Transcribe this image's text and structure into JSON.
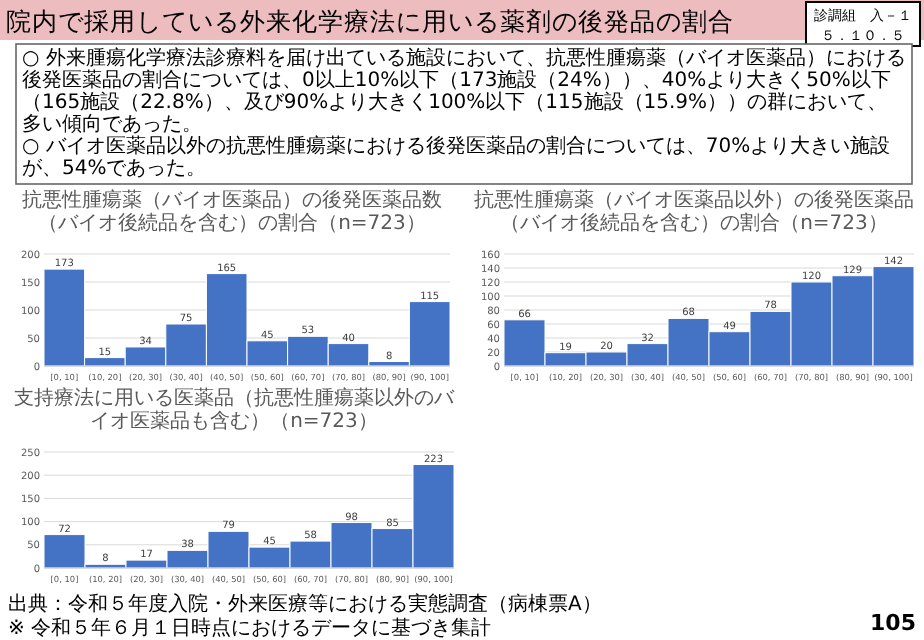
{
  "chart_data": [
    {
      "type": "other",
      "title": "院内で採用している外来化学療法に用いる薬剤の後発品の割合",
      "annotations": [
        "診調組　入－１",
        "５．１０．５",
        "○ 外来腫瘍化学療法診療料を届け出ている施設において、抗悪性腫瘍薬（バイオ医薬品）における後発医薬品の割合については、0以上10%以下（173施設（24%））、40%より大きく50%以下（165施設（22.8%）、及び90%より大きく100%以下（115施設（15.9%））の群において、多い傾向であった。",
        "○ バイオ医薬品以外の抗悪性腫瘍薬における後発医薬品の割合については、70%より大きい施設が、54%であった。",
        "出典：令和５年度入院・外来医療等における実態調査（病棟票A）",
        "※ 令和５年６月１日時点におけるデータに基づき集計",
        "105"
      ]
    },
    {
      "type": "bar",
      "title": "抗悪性腫瘍薬（バイオ医薬品）の後発医薬品数（バイオ後続品を含む）の割合（n=723）",
      "categories": [
        "[0, 10]",
        "(10, 20]",
        "(20, 30]",
        "(30, 40]",
        "(40, 50]",
        "(50, 60]",
        "(60, 70]",
        "(70, 80]",
        "(80, 90]",
        "(90, 100]"
      ],
      "values": [
        173,
        15,
        34,
        75,
        165,
        45,
        53,
        40,
        8,
        115
      ],
      "color": "#4472c4",
      "ylim": [
        0,
        200
      ],
      "yticks": [
        0,
        50,
        100,
        150,
        200
      ],
      "grid": "y",
      "data_labels": true
    },
    {
      "type": "bar",
      "title": "抗悪性腫瘍薬（バイオ医薬品以外）の後発医薬品（バイオ後続品を含む）の割合（n=723）",
      "categories": [
        "[0, 10]",
        "(10, 20]",
        "(20, 30]",
        "(30, 40]",
        "(40, 50]",
        "(50, 60]",
        "(60, 70]",
        "(70, 80]",
        "(80, 90]",
        "(90, 100]"
      ],
      "values": [
        66,
        19,
        20,
        32,
        68,
        49,
        78,
        120,
        129,
        142
      ],
      "color": "#4472c4",
      "ylim": [
        0,
        160
      ],
      "yticks": [
        0,
        20,
        40,
        60,
        80,
        100,
        120,
        140,
        160
      ],
      "grid": "y",
      "data_labels": true
    },
    {
      "type": "bar",
      "title": "支持療法に用いる医薬品（抗悪性腫瘍薬以外のバイオ医薬品も含む）（n=723）",
      "categories": [
        "[0, 10]",
        "(10, 20]",
        "(20, 30]",
        "(30, 40]",
        "(40, 50]",
        "(50, 60]",
        "(60, 70]",
        "(70, 80]",
        "(80, 90]",
        "(90, 100]"
      ],
      "values": [
        72,
        8,
        17,
        38,
        79,
        45,
        58,
        98,
        85,
        223
      ],
      "color": "#4472c4",
      "ylim": [
        0,
        250
      ],
      "yticks": [
        0,
        50,
        100,
        150,
        200,
        250
      ],
      "grid": "y",
      "data_labels": true
    }
  ]
}
